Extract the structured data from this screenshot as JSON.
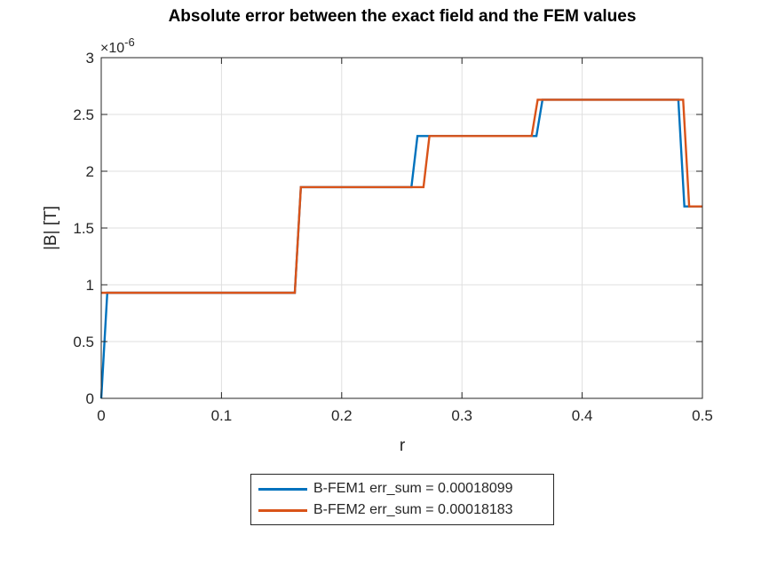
{
  "chart_data": {
    "type": "line",
    "title": "Absolute error between the exact field and the FEM values",
    "xlabel": "r",
    "ylabel": "|B| [T]",
    "xlim": [
      0,
      0.5
    ],
    "ylim": [
      0,
      3
    ],
    "y_exponent": "-6",
    "y_exponent_base": "×10",
    "xticks": [
      0,
      0.1,
      0.2,
      0.3,
      0.4,
      0.5
    ],
    "xtick_labels": [
      "0",
      "0.1",
      "0.2",
      "0.3",
      "0.4",
      "0.5"
    ],
    "yticks": [
      0,
      0.5,
      1,
      1.5,
      2,
      2.5,
      3
    ],
    "ytick_labels": [
      "0",
      "0.5",
      "1",
      "1.5",
      "2",
      "2.5",
      "3"
    ],
    "grid": true,
    "legend_position": "bottom-outside",
    "series": [
      {
        "name": "B-FEM1 err_sum = 0.00018099",
        "color": "#0072BD",
        "x": [
          0,
          0.005,
          0.161,
          0.166,
          0.258,
          0.263,
          0.268,
          0.273,
          0.362,
          0.367,
          0.48,
          0.485,
          0.5
        ],
        "y": [
          0,
          0.93,
          0.93,
          1.86,
          1.86,
          2.31,
          2.31,
          2.31,
          2.31,
          2.63,
          2.63,
          1.69,
          1.69
        ]
      },
      {
        "name": "B-FEM2 err_sum = 0.00018183",
        "color": "#D95319",
        "x": [
          0,
          0.005,
          0.161,
          0.166,
          0.268,
          0.273,
          0.358,
          0.363,
          0.484,
          0.489,
          0.5
        ],
        "y": [
          0.93,
          0.93,
          0.93,
          1.86,
          1.86,
          2.31,
          2.31,
          2.63,
          2.63,
          1.69,
          1.69
        ]
      }
    ]
  }
}
